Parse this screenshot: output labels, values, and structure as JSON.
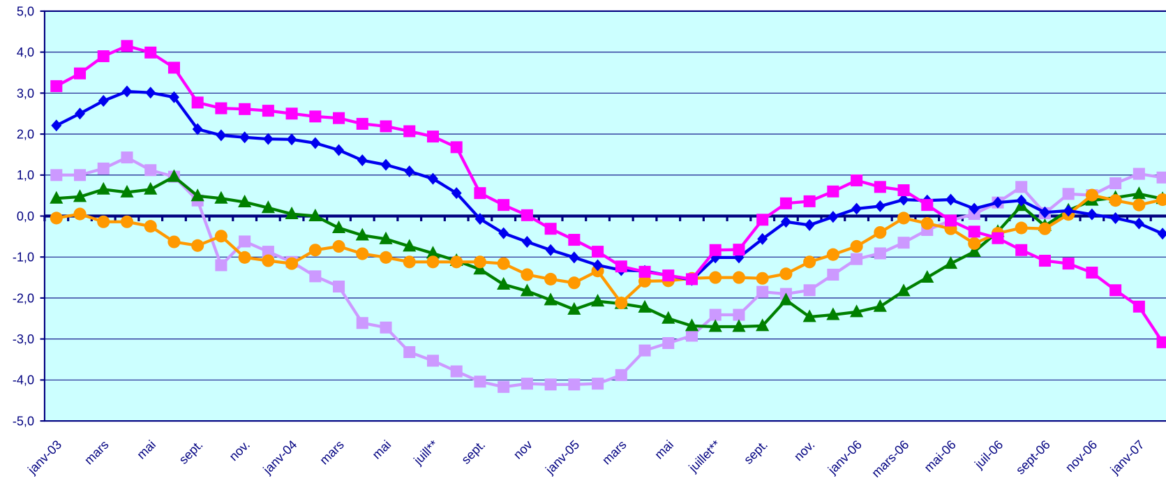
{
  "chart_data": {
    "type": "line",
    "categories": [
      "janv-03",
      null,
      "mars",
      null,
      "mai",
      null,
      "sept.",
      null,
      "nov.",
      null,
      "janv-04",
      null,
      "mars",
      null,
      "mai",
      null,
      "juill**",
      null,
      "sept.",
      null,
      "nov",
      null,
      "janv-05",
      null,
      "mars",
      null,
      "mai",
      null,
      "juillet**",
      null,
      "sept.",
      null,
      "nov.",
      null,
      "janv-06",
      null,
      "mars-06",
      null,
      "mai-06",
      null,
      "juil-06",
      null,
      "sept-06",
      null,
      "nov-06",
      null,
      "janv-07",
      null
    ],
    "series": [
      {
        "color": "#cc99ff",
        "marker": "square",
        "values": [
          1.0,
          1.0,
          1.16,
          1.43,
          1.12,
          0.96,
          0.38,
          -1.2,
          -0.62,
          -0.87,
          -1.12,
          -1.47,
          -1.72,
          -2.61,
          -2.72,
          -3.32,
          -3.53,
          -3.79,
          -4.04,
          -4.17,
          -4.09,
          -4.11,
          -4.11,
          -4.09,
          -3.88,
          -3.28,
          -3.1,
          -2.92,
          -2.41,
          -2.41,
          -1.85,
          -1.9,
          -1.81,
          -1.43,
          -1.05,
          -0.91,
          -0.65,
          -0.34,
          -0.11,
          0.05,
          0.33,
          0.71,
          0.07,
          0.54,
          0.51,
          0.8,
          1.03,
          0.94
        ]
      },
      {
        "color": "#008000",
        "marker": "triangle",
        "values": [
          0.43,
          0.47,
          0.65,
          0.58,
          0.65,
          0.96,
          0.49,
          0.43,
          0.34,
          0.2,
          0.05,
          0.0,
          -0.29,
          -0.47,
          -0.56,
          -0.74,
          -0.91,
          -1.09,
          -1.3,
          -1.67,
          -1.83,
          -2.05,
          -2.28,
          -2.08,
          -2.14,
          -2.23,
          -2.5,
          -2.68,
          -2.7,
          -2.7,
          -2.68,
          -2.05,
          -2.46,
          -2.41,
          -2.34,
          -2.21,
          -1.83,
          -1.5,
          -1.16,
          -0.87,
          -0.38,
          0.25,
          -0.24,
          0.14,
          0.38,
          0.45,
          0.54,
          0.42
        ]
      },
      {
        "color": "#ff9900",
        "marker": "circle",
        "values": [
          -0.05,
          0.05,
          -0.14,
          -0.14,
          -0.25,
          -0.63,
          -0.72,
          -0.49,
          -1.01,
          -1.09,
          -1.16,
          -0.83,
          -0.74,
          -0.92,
          -1.01,
          -1.12,
          -1.12,
          -1.12,
          -1.12,
          -1.16,
          -1.43,
          -1.54,
          -1.63,
          -1.34,
          -2.12,
          -1.59,
          -1.58,
          -1.52,
          -1.5,
          -1.5,
          -1.52,
          -1.41,
          -1.12,
          -0.94,
          -0.74,
          -0.4,
          -0.05,
          -0.18,
          -0.31,
          -0.67,
          -0.42,
          -0.29,
          -0.31,
          0.04,
          0.51,
          0.38,
          0.27,
          0.4
        ]
      },
      {
        "color": "#0000ee",
        "marker": "diamond",
        "values": [
          2.21,
          2.5,
          2.81,
          3.04,
          3.01,
          2.9,
          2.12,
          1.97,
          1.92,
          1.88,
          1.87,
          1.78,
          1.61,
          1.36,
          1.25,
          1.09,
          0.91,
          0.56,
          -0.07,
          -0.42,
          -0.63,
          -0.83,
          -1.01,
          -1.2,
          -1.32,
          -1.34,
          -1.45,
          -1.56,
          -1.01,
          -1.01,
          -0.56,
          -0.14,
          -0.22,
          -0.02,
          0.18,
          0.24,
          0.4,
          0.38,
          0.4,
          0.18,
          0.33,
          0.38,
          0.09,
          0.13,
          0.04,
          -0.05,
          -0.18,
          -0.43
        ]
      },
      {
        "color": "#ff00ff",
        "marker": "square",
        "values": [
          3.17,
          3.48,
          3.9,
          4.15,
          3.99,
          3.62,
          2.77,
          2.63,
          2.61,
          2.57,
          2.5,
          2.43,
          2.39,
          2.25,
          2.19,
          2.07,
          1.94,
          1.68,
          0.56,
          0.27,
          0.02,
          -0.31,
          -0.58,
          -0.87,
          -1.23,
          -1.36,
          -1.45,
          -1.54,
          -0.83,
          -0.82,
          -0.09,
          0.31,
          0.36,
          0.6,
          0.87,
          0.71,
          0.63,
          0.27,
          -0.11,
          -0.38,
          -0.54,
          -0.83,
          -1.09,
          -1.16,
          -1.38,
          -1.81,
          -2.21,
          -3.08
        ]
      }
    ],
    "ylim": [
      -5,
      5
    ],
    "yticks": [
      {
        "value": -5,
        "label": "-5,0"
      },
      {
        "value": -4,
        "label": "-4,0"
      },
      {
        "value": -3,
        "label": "-3,0"
      },
      {
        "value": -2,
        "label": "-2,0"
      },
      {
        "value": -1,
        "label": "-1,0"
      },
      {
        "value": 0,
        "label": "0,0"
      },
      {
        "value": 1,
        "label": "1,0"
      },
      {
        "value": 2,
        "label": "2,0"
      },
      {
        "value": 3,
        "label": "3,0"
      },
      {
        "value": 4,
        "label": "4,0"
      },
      {
        "value": 5,
        "label": "5,0"
      }
    ],
    "grid": true,
    "plot_background": "#ccffff",
    "axis_color": "#000080"
  }
}
